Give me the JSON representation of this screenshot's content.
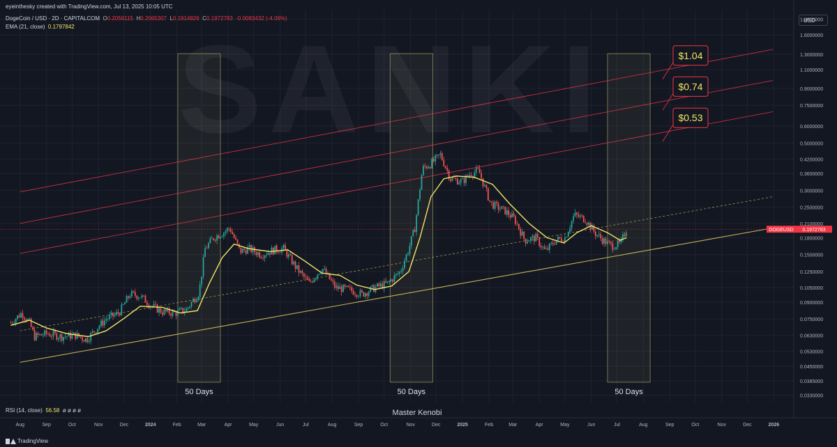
{
  "header": {
    "attribution": "eyeinthesky created with TradingView.com, Jul 13, 2025 10:05 UTC",
    "symbol": "DogeCoin / USD · 2D · CAPITALCOM",
    "ohlc": {
      "o_label": "O",
      "o": "0.2056115",
      "h_label": "H",
      "h": "0.2065307",
      "l_label": "L",
      "l": "0.1914826",
      "c_label": "C",
      "c": "0.1972783",
      "change": "-0.0083432 (-4.06%)"
    },
    "ema_label": "EMA (21, close)",
    "ema_value": "0.1797842",
    "rsi_label": "RSI (14, close)",
    "rsi_value": "56.58",
    "rsi_extra": "ø ø ø ø"
  },
  "currency_button": "USD",
  "watermark": "SANKI",
  "author_label": "Master Kenobi",
  "footer_logo": "TradingView",
  "colors": {
    "background": "#131722",
    "up": "#26a69a",
    "down": "#ef5350",
    "ema": "#f2e66a",
    "channel": "#f23645",
    "support": "#c9b458",
    "price_tag": "#f23645"
  },
  "chart_data": {
    "type": "candlestick",
    "symbol_tag": "DOGEUSD",
    "last_price": "0.1972783",
    "y_scale": "log",
    "y_ticks": [
      "1.9000000",
      "1.6000000",
      "1.3000000",
      "1.1000000",
      "0.9000000",
      "0.7500000",
      "0.6000000",
      "0.5000000",
      "0.4200000",
      "0.3600000",
      "0.3000000",
      "0.2500000",
      "0.2100000",
      "0.1800000",
      "0.1500000",
      "0.1250000",
      "0.1050000",
      "0.0900000",
      "0.0750000",
      "0.0630000",
      "0.0530000",
      "0.0450000",
      "0.0385000",
      "0.0330000"
    ],
    "x_ticks": [
      "Aug",
      "Sep",
      "Oct",
      "Nov",
      "Dec",
      "2024",
      "Feb",
      "Mar",
      "Apr",
      "May",
      "Jun",
      "Jul",
      "Aug",
      "Sep",
      "Oct",
      "Nov",
      "Dec",
      "2025",
      "Feb",
      "Mar",
      "Apr",
      "May",
      "Jun",
      "Jul",
      "Aug",
      "Sep",
      "Oct",
      "Nov",
      "Dec",
      "2026"
    ],
    "price_path": [
      [
        "2023-07-21",
        0.072
      ],
      [
        "2023-08-03",
        0.08
      ],
      [
        "2023-08-12",
        0.072
      ],
      [
        "2023-08-18",
        0.062
      ],
      [
        "2023-09-01",
        0.064
      ],
      [
        "2023-09-20",
        0.062
      ],
      [
        "2023-10-05",
        0.063
      ],
      [
        "2023-10-18",
        0.06
      ],
      [
        "2023-10-30",
        0.068
      ],
      [
        "2023-11-10",
        0.075
      ],
      [
        "2023-11-25",
        0.08
      ],
      [
        "2023-12-08",
        0.098
      ],
      [
        "2023-12-20",
        0.096
      ],
      [
        "2024-01-03",
        0.086
      ],
      [
        "2024-01-15",
        0.081
      ],
      [
        "2024-01-30",
        0.08
      ],
      [
        "2024-02-12",
        0.083
      ],
      [
        "2024-02-27",
        0.1
      ],
      [
        "2024-03-05",
        0.16
      ],
      [
        "2024-03-15",
        0.18
      ],
      [
        "2024-03-26",
        0.19
      ],
      [
        "2024-04-03",
        0.2
      ],
      [
        "2024-04-15",
        0.155
      ],
      [
        "2024-04-25",
        0.16
      ],
      [
        "2024-05-10",
        0.15
      ],
      [
        "2024-05-25",
        0.158
      ],
      [
        "2024-06-05",
        0.16
      ],
      [
        "2024-06-20",
        0.13
      ],
      [
        "2024-07-05",
        0.11
      ],
      [
        "2024-07-20",
        0.13
      ],
      [
        "2024-08-05",
        0.105
      ],
      [
        "2024-08-20",
        0.103
      ],
      [
        "2024-09-05",
        0.098
      ],
      [
        "2024-09-20",
        0.105
      ],
      [
        "2024-10-05",
        0.11
      ],
      [
        "2024-10-20",
        0.125
      ],
      [
        "2024-10-30",
        0.16
      ],
      [
        "2024-11-06",
        0.2
      ],
      [
        "2024-11-15",
        0.38
      ],
      [
        "2024-11-25",
        0.4
      ],
      [
        "2024-12-06",
        0.44
      ],
      [
        "2024-12-18",
        0.34
      ],
      [
        "2025-01-01",
        0.33
      ],
      [
        "2025-01-10",
        0.36
      ],
      [
        "2025-01-20",
        0.37
      ],
      [
        "2025-02-03",
        0.26
      ],
      [
        "2025-02-20",
        0.24
      ],
      [
        "2025-03-03",
        0.22
      ],
      [
        "2025-03-15",
        0.175
      ],
      [
        "2025-03-28",
        0.18
      ],
      [
        "2025-04-08",
        0.155
      ],
      [
        "2025-04-20",
        0.175
      ],
      [
        "2025-05-01",
        0.18
      ],
      [
        "2025-05-12",
        0.23
      ],
      [
        "2025-05-25",
        0.22
      ],
      [
        "2025-06-05",
        0.19
      ],
      [
        "2025-06-15",
        0.175
      ],
      [
        "2025-06-25",
        0.165
      ],
      [
        "2025-07-05",
        0.168
      ],
      [
        "2025-07-12",
        0.197
      ]
    ],
    "ema_path": [
      [
        "2023-07-21",
        0.07
      ],
      [
        "2023-08-12",
        0.074
      ],
      [
        "2023-09-01",
        0.068
      ],
      [
        "2023-09-25",
        0.064
      ],
      [
        "2023-10-20",
        0.062
      ],
      [
        "2023-11-10",
        0.066
      ],
      [
        "2023-11-30",
        0.075
      ],
      [
        "2023-12-20",
        0.086
      ],
      [
        "2024-01-15",
        0.085
      ],
      [
        "2024-02-05",
        0.08
      ],
      [
        "2024-02-25",
        0.082
      ],
      [
        "2024-03-10",
        0.11
      ],
      [
        "2024-03-25",
        0.145
      ],
      [
        "2024-04-08",
        0.168
      ],
      [
        "2024-04-25",
        0.16
      ],
      [
        "2024-05-20",
        0.155
      ],
      [
        "2024-06-10",
        0.158
      ],
      [
        "2024-06-30",
        0.14
      ],
      [
        "2024-07-20",
        0.123
      ],
      [
        "2024-08-10",
        0.12
      ],
      [
        "2024-08-30",
        0.108
      ],
      [
        "2024-09-20",
        0.103
      ],
      [
        "2024-10-10",
        0.107
      ],
      [
        "2024-10-30",
        0.125
      ],
      [
        "2024-11-12",
        0.18
      ],
      [
        "2024-11-25",
        0.28
      ],
      [
        "2024-12-10",
        0.34
      ],
      [
        "2024-12-25",
        0.35
      ],
      [
        "2025-01-15",
        0.345
      ],
      [
        "2025-02-05",
        0.32
      ],
      [
        "2025-02-25",
        0.26
      ],
      [
        "2025-03-20",
        0.21
      ],
      [
        "2025-04-10",
        0.18
      ],
      [
        "2025-04-30",
        0.17
      ],
      [
        "2025-05-15",
        0.19
      ],
      [
        "2025-06-01",
        0.205
      ],
      [
        "2025-06-20",
        0.19
      ],
      [
        "2025-07-05",
        0.175
      ],
      [
        "2025-07-12",
        0.18
      ]
    ],
    "channel_lines": [
      {
        "label": "$1.04",
        "start": [
          "2023-08-01",
          0.295
        ],
        "end": [
          "2025-12-31",
          1.37
        ]
      },
      {
        "label": "$0.74",
        "start": [
          "2023-08-01",
          0.21
        ],
        "end": [
          "2025-12-31",
          0.98
        ]
      },
      {
        "label": "$0.53",
        "start": [
          "2023-08-01",
          0.152
        ],
        "end": [
          "2025-12-31",
          0.7
        ]
      }
    ],
    "support_line": {
      "start": [
        "2023-08-01",
        0.047
      ],
      "end": [
        "2025-12-31",
        0.2
      ]
    },
    "mid_line": {
      "start": [
        "2023-08-01",
        0.066
      ],
      "end": [
        "2025-12-31",
        0.28
      ]
    },
    "time_windows": [
      {
        "label": "50 Days",
        "start": "2024-02-02",
        "end": "2024-03-23"
      },
      {
        "label": "50 Days",
        "start": "2024-10-08",
        "end": "2024-11-27"
      },
      {
        "label": "50 Days",
        "start": "2025-06-20",
        "end": "2025-08-09"
      }
    ]
  }
}
